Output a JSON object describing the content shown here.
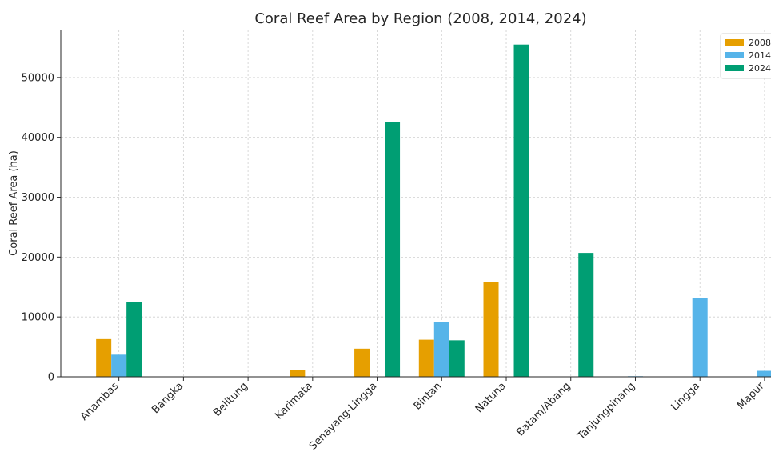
{
  "chart_data": {
    "type": "bar",
    "title": "Coral Reef Area by Region (2008, 2014, 2024)",
    "xlabel": "",
    "ylabel": "Coral Reef Area (ha)",
    "categories": [
      "Anambas",
      "Bangka",
      "Belitung",
      "Karimata",
      "Senayang-Lingga",
      "Bintan",
      "Natuna",
      "Batam/Abang",
      "Tanjungpinang",
      "Lingga",
      "Mapur"
    ],
    "series": [
      {
        "name": "2008",
        "color": "#E69F00",
        "values": [
          6300,
          0,
          0,
          1100,
          4700,
          6200,
          15900,
          0,
          0,
          0,
          0
        ]
      },
      {
        "name": "2014",
        "color": "#56B4E9",
        "values": [
          3700,
          0,
          0,
          0,
          0,
          9100,
          0,
          0,
          100,
          13100,
          1000
        ]
      },
      {
        "name": "2024",
        "color": "#009E73",
        "values": [
          12500,
          0,
          0,
          0,
          42500,
          6100,
          55500,
          20700,
          0,
          0,
          0
        ]
      }
    ],
    "ylim": [
      0,
      58000
    ],
    "yticks": [
      0,
      10000,
      20000,
      30000,
      40000,
      50000
    ],
    "grid": true,
    "legend": "top-right"
  }
}
